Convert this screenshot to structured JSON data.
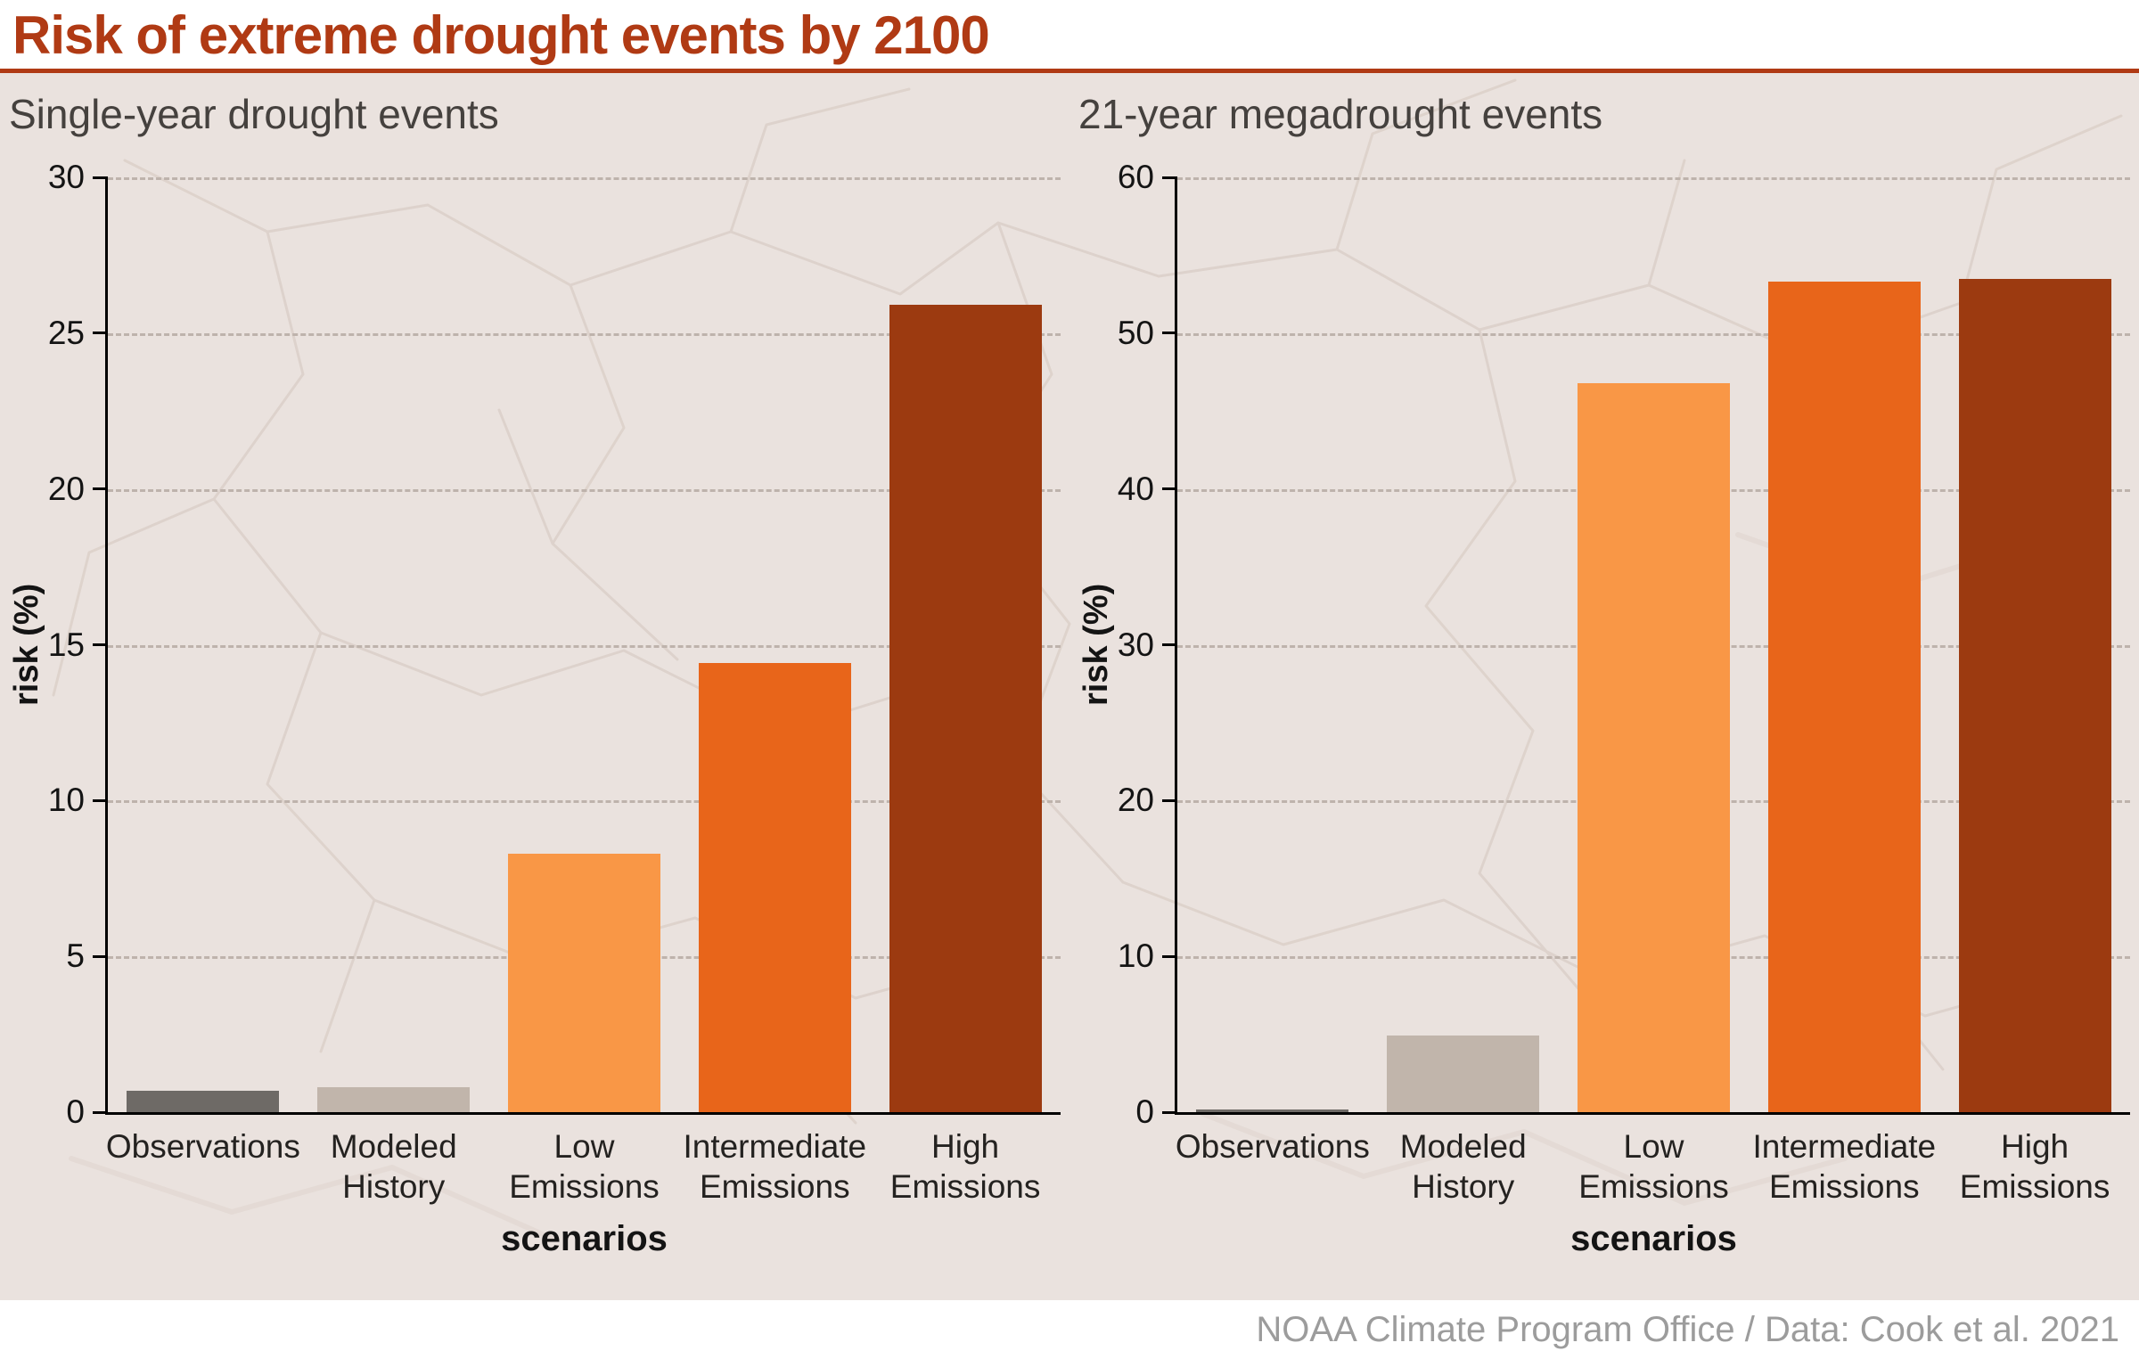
{
  "header": {
    "title": "Risk of extreme drought events by 2100"
  },
  "footer": {
    "credit": "NOAA Climate Program Office / Data: Cook et al. 2021"
  },
  "colors": {
    "accent": "#b03a14",
    "page_background": "#eae2de",
    "panel_text": "#45413e",
    "grid": "#beb3ac",
    "footer_text": "#9c9c9c"
  },
  "chart_data": [
    {
      "type": "bar",
      "title": "Single-year drought events",
      "categories": [
        "Observations",
        "Modeled History",
        "Low Emissions",
        "Intermediate Emissions",
        "High Emissions"
      ],
      "category_lines": [
        [
          "Observations"
        ],
        [
          "Modeled",
          "History"
        ],
        [
          "Low",
          "Emissions"
        ],
        [
          "Intermediate",
          "Emissions"
        ],
        [
          "High",
          "Emissions"
        ]
      ],
      "values": [
        0.7,
        0.8,
        8.3,
        14.4,
        25.9
      ],
      "bar_colors": [
        "#6e6a66",
        "#c1b5ab",
        "#f99746",
        "#e8651a",
        "#9c3a10"
      ],
      "xlabel": "scenarios",
      "ylabel": "risk (%)",
      "ylim": [
        0,
        30
      ],
      "yticks": [
        0,
        5,
        10,
        15,
        20,
        25,
        30
      ],
      "grid": "dashed horizontal",
      "legend": "none"
    },
    {
      "type": "bar",
      "title": "21-year megadrought events",
      "categories": [
        "Observations",
        "Modeled History",
        "Low Emissions",
        "Intermediate Emissions",
        "High Emissions"
      ],
      "category_lines": [
        [
          "Observations"
        ],
        [
          "Modeled",
          "History"
        ],
        [
          "Low",
          "Emissions"
        ],
        [
          "Intermediate",
          "Emissions"
        ],
        [
          "High",
          "Emissions"
        ]
      ],
      "values": [
        0.2,
        4.9,
        46.8,
        53.3,
        53.5
      ],
      "bar_colors": [
        "#6e6a66",
        "#c1b5ab",
        "#f99746",
        "#e8651a",
        "#9c3a10"
      ],
      "xlabel": "scenarios",
      "ylabel": "risk (%)",
      "ylim": [
        0,
        60
      ],
      "yticks": [
        0,
        10,
        20,
        30,
        40,
        50,
        60
      ],
      "grid": "dashed horizontal",
      "legend": "none"
    }
  ]
}
